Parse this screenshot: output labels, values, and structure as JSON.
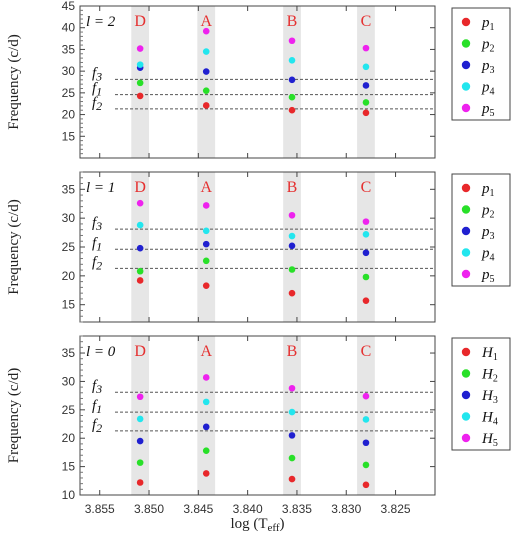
{
  "chart_data": {
    "type": "scatter",
    "xlabel": "log (T",
    "xlabel_sub": "eff",
    "xlabel_close": ")",
    "xlim": [
      3.857,
      3.821
    ],
    "xticks": [
      "3.855",
      "3.850",
      "3.845",
      "3.840",
      "3.835",
      "3.830",
      "3.825"
    ],
    "ylabel": "Frequency (c/d)",
    "grid": false,
    "legend_placement": "right",
    "model_labels": [
      {
        "name": "D",
        "x": 3.8509
      },
      {
        "name": "A",
        "x": 3.8442
      },
      {
        "name": "B",
        "x": 3.8355
      },
      {
        "name": "C",
        "x": 3.828
      }
    ],
    "band_halfwidth": 0.0009,
    "line_labels": [
      "f3",
      "f1",
      "f2"
    ],
    "panels": [
      {
        "ell_label": "l = 2",
        "ylim": [
          10,
          45
        ],
        "yticks": [
          "15",
          "20",
          "25",
          "30",
          "35",
          "40",
          "45"
        ],
        "lines": {
          "f3": 28.1,
          "f1": 24.6,
          "f2": 21.3
        },
        "legend": [
          {
            "label": "p",
            "sub": "1",
            "color": "#e8282b"
          },
          {
            "label": "p",
            "sub": "2",
            "color": "#28e028"
          },
          {
            "label": "p",
            "sub": "3",
            "color": "#2020d0"
          },
          {
            "label": "p",
            "sub": "4",
            "color": "#22e6ee"
          },
          {
            "label": "p",
            "sub": "5",
            "color": "#ee22ee"
          }
        ],
        "series": [
          {
            "name": "p1",
            "color": "#e8282b",
            "x": [
              3.8509,
              3.8442,
              3.8355,
              3.828
            ],
            "y": [
              24.3,
              22.1,
              21.0,
              20.4
            ]
          },
          {
            "name": "p2",
            "color": "#28e028",
            "x": [
              3.8509,
              3.8442,
              3.8355,
              3.828
            ],
            "y": [
              27.3,
              25.5,
              24.0,
              22.8
            ]
          },
          {
            "name": "p3",
            "color": "#2020d0",
            "x": [
              3.8509,
              3.8442,
              3.8355,
              3.828
            ],
            "y": [
              30.8,
              29.9,
              28.0,
              26.7
            ]
          },
          {
            "name": "p4",
            "color": "#22e6ee",
            "x": [
              3.8509,
              3.8442,
              3.8355,
              3.828
            ],
            "y": [
              31.5,
              34.5,
              32.5,
              31.0
            ]
          },
          {
            "name": "p5",
            "color": "#ee22ee",
            "x": [
              3.8509,
              3.8442,
              3.8355,
              3.828
            ],
            "y": [
              35.2,
              39.2,
              37.0,
              35.3
            ]
          }
        ]
      },
      {
        "ell_label": "l = 1",
        "ylim": [
          12,
          38
        ],
        "yticks": [
          "15",
          "20",
          "25",
          "30",
          "35"
        ],
        "lines": {
          "f3": 28.1,
          "f1": 24.6,
          "f2": 21.3
        },
        "legend": [
          {
            "label": "p",
            "sub": "1",
            "color": "#e8282b"
          },
          {
            "label": "p",
            "sub": "2",
            "color": "#28e028"
          },
          {
            "label": "p",
            "sub": "3",
            "color": "#2020d0"
          },
          {
            "label": "p",
            "sub": "4",
            "color": "#22e6ee"
          },
          {
            "label": "p",
            "sub": "5",
            "color": "#ee22ee"
          }
        ],
        "series": [
          {
            "name": "p1",
            "color": "#e8282b",
            "x": [
              3.8509,
              3.8442,
              3.8355,
              3.828
            ],
            "y": [
              19.2,
              18.3,
              17.0,
              15.7
            ]
          },
          {
            "name": "p2",
            "color": "#28e028",
            "x": [
              3.8509,
              3.8442,
              3.8355,
              3.828
            ],
            "y": [
              20.8,
              22.6,
              21.1,
              19.8
            ]
          },
          {
            "name": "p3",
            "color": "#2020d0",
            "x": [
              3.8509,
              3.8442,
              3.8355,
              3.828
            ],
            "y": [
              24.8,
              25.5,
              25.2,
              24.0
            ]
          },
          {
            "name": "p4",
            "color": "#22e6ee",
            "x": [
              3.8509,
              3.8442,
              3.8355,
              3.828
            ],
            "y": [
              28.8,
              27.8,
              26.9,
              27.2
            ]
          },
          {
            "name": "p5",
            "color": "#ee22ee",
            "x": [
              3.8509,
              3.8442,
              3.8355,
              3.828
            ],
            "y": [
              32.6,
              32.2,
              30.5,
              29.4
            ]
          }
        ]
      },
      {
        "ell_label": "l = 0",
        "ylim": [
          10,
          38
        ],
        "yticks": [
          "10",
          "15",
          "20",
          "25",
          "30",
          "35"
        ],
        "lines": {
          "f3": 28.1,
          "f1": 24.6,
          "f2": 21.3
        },
        "legend": [
          {
            "label": "H",
            "sub": "1",
            "color": "#e8282b"
          },
          {
            "label": "H",
            "sub": "2",
            "color": "#28e028"
          },
          {
            "label": "H",
            "sub": "3",
            "color": "#2020d0"
          },
          {
            "label": "H",
            "sub": "4",
            "color": "#22e6ee"
          },
          {
            "label": "H",
            "sub": "5",
            "color": "#ee22ee"
          }
        ],
        "series": [
          {
            "name": "H1",
            "color": "#e8282b",
            "x": [
              3.8509,
              3.8442,
              3.8355,
              3.828
            ],
            "y": [
              12.2,
              13.8,
              12.8,
              11.8
            ]
          },
          {
            "name": "H2",
            "color": "#28e028",
            "x": [
              3.8509,
              3.8442,
              3.8355,
              3.828
            ],
            "y": [
              15.7,
              17.8,
              16.5,
              15.3
            ]
          },
          {
            "name": "H3",
            "color": "#2020d0",
            "x": [
              3.8509,
              3.8442,
              3.8355,
              3.828
            ],
            "y": [
              19.5,
              22.0,
              20.5,
              19.2
            ]
          },
          {
            "name": "H4",
            "color": "#22e6ee",
            "x": [
              3.8509,
              3.8442,
              3.8355,
              3.828
            ],
            "y": [
              23.4,
              26.4,
              24.6,
              23.3
            ]
          },
          {
            "name": "H5",
            "color": "#ee22ee",
            "x": [
              3.8509,
              3.8442,
              3.8355,
              3.828
            ],
            "y": [
              27.3,
              30.7,
              28.8,
              27.4
            ]
          }
        ]
      }
    ]
  }
}
